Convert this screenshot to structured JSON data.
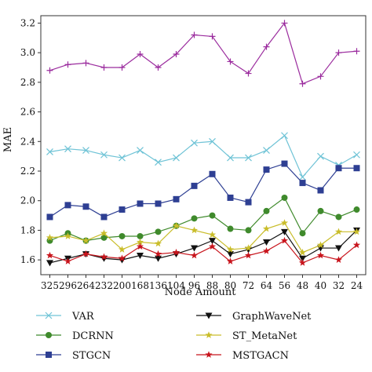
{
  "chart_data": {
    "type": "line",
    "title": "",
    "xlabel": "Node Amount",
    "ylabel": "MAE",
    "ylim": [
      1.5,
      3.25
    ],
    "yticks": [
      "1.6",
      "1.8",
      "2.0",
      "2.2",
      "2.4",
      "2.6",
      "2.8",
      "3.0",
      "3.2"
    ],
    "categories": [
      "325",
      "296",
      "264",
      "232",
      "200",
      "168",
      "136",
      "104",
      "96",
      "88",
      "80",
      "72",
      "64",
      "56",
      "48",
      "40",
      "32",
      "24"
    ],
    "grid": false,
    "legend_position": "bottom",
    "series": [
      {
        "name": "VAR",
        "color": "#6fc3d6",
        "marker": "x",
        "values": [
          2.33,
          2.35,
          2.34,
          2.31,
          2.29,
          2.34,
          2.26,
          2.29,
          2.39,
          2.4,
          2.29,
          2.29,
          2.34,
          2.44,
          2.16,
          2.3,
          2.24,
          2.31
        ]
      },
      {
        "name": "GraphWaveNet",
        "color": "#111111",
        "marker": "triangle-down",
        "values": [
          1.58,
          1.61,
          1.64,
          1.61,
          1.6,
          1.63,
          1.61,
          1.64,
          1.68,
          1.73,
          1.64,
          1.67,
          1.72,
          1.79,
          1.61,
          1.68,
          1.68,
          1.8
        ]
      },
      {
        "name": "DCRNN",
        "color": "#3f8a2c",
        "marker": "circle",
        "values": [
          1.73,
          1.78,
          1.73,
          1.75,
          1.76,
          1.76,
          1.79,
          1.83,
          1.88,
          1.9,
          1.81,
          1.8,
          1.93,
          2.02,
          1.78,
          1.93,
          1.89,
          1.94
        ]
      },
      {
        "name": "ST_MetaNet",
        "color": "#c9bd2a",
        "marker": "star",
        "values": [
          1.75,
          1.76,
          1.73,
          1.78,
          1.67,
          1.72,
          1.71,
          1.83,
          1.8,
          1.77,
          1.67,
          1.68,
          1.81,
          1.85,
          1.65,
          1.7,
          1.79,
          1.79
        ]
      },
      {
        "name": "STGCN",
        "color": "#2e3f93",
        "marker": "square",
        "values": [
          1.89,
          1.97,
          1.96,
          1.89,
          1.94,
          1.98,
          1.98,
          2.01,
          2.1,
          2.18,
          2.02,
          1.99,
          2.21,
          2.25,
          2.12,
          2.07,
          2.22,
          2.22
        ]
      },
      {
        "name": "MSTGACN",
        "color": "#c8141c",
        "marker": "star",
        "values": [
          1.63,
          1.59,
          1.64,
          1.62,
          1.61,
          1.69,
          1.64,
          1.65,
          1.63,
          1.69,
          1.59,
          1.63,
          1.66,
          1.73,
          1.58,
          1.63,
          1.6,
          1.7
        ]
      },
      {
        "name": "",
        "color": "#9b2c9e",
        "marker": "plus",
        "values": [
          2.88,
          2.92,
          2.93,
          2.9,
          2.9,
          2.99,
          2.9,
          2.99,
          3.12,
          3.11,
          2.94,
          2.86,
          3.04,
          3.2,
          2.79,
          2.84,
          3.0,
          3.01
        ]
      }
    ]
  }
}
